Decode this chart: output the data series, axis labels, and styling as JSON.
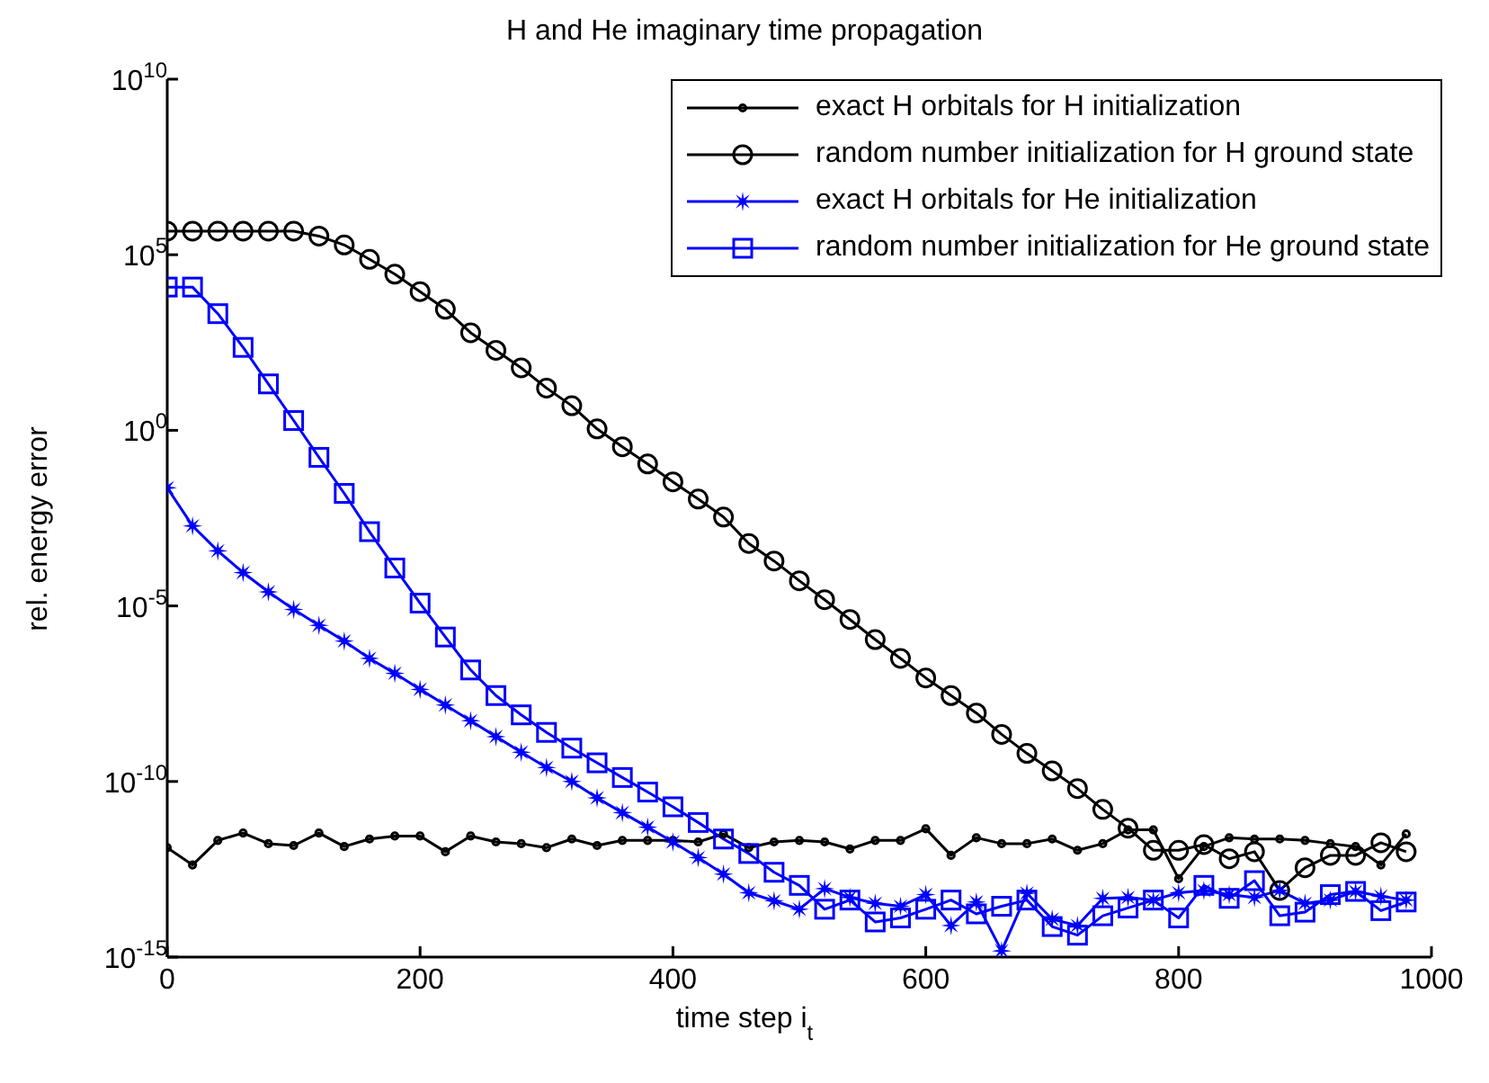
{
  "chart_data": {
    "type": "line",
    "title": "H and He imaginary time propagation",
    "xlabel": "time step i$_{t}$",
    "ylabel": "rel. energy error",
    "log": "y",
    "grid": false,
    "legend": "top right",
    "line_style": "solid",
    "xlim": [
      0,
      1000
    ],
    "xticks": [
      0,
      200,
      400,
      600,
      800,
      1000
    ],
    "ylim": [
      1e-15,
      10000000000.0
    ],
    "yticks": [
      {
        "value": 1e-15,
        "label": "10$^{-15}$"
      },
      {
        "value": 1e-10,
        "label": "10$^{-10}$"
      },
      {
        "value": 1e-05,
        "label": "10$^{-5}$"
      },
      {
        "value": 1,
        "label": "10$^{0}$"
      },
      {
        "value": 100000.0,
        "label": "10$^{5}$"
      },
      {
        "value": 10000000000.0,
        "label": "10$^{10}$"
      }
    ],
    "x": [
      0,
      20,
      40,
      60,
      80,
      100,
      120,
      140,
      160,
      180,
      200,
      220,
      240,
      260,
      280,
      300,
      320,
      340,
      360,
      380,
      400,
      420,
      440,
      460,
      480,
      500,
      520,
      540,
      560,
      580,
      600,
      620,
      640,
      660,
      680,
      700,
      720,
      740,
      760,
      780,
      800,
      820,
      840,
      860,
      880,
      900,
      920,
      940,
      960,
      980
    ],
    "series": [
      {
        "name": "exact H orbitals for H initialization",
        "color": "#000000",
        "marker": "circle",
        "values": [
          1.3e-12,
          4.2e-13,
          2.1e-12,
          3.4e-12,
          1.7e-12,
          1.5e-12,
          3.4e-12,
          1.4e-12,
          2.3e-12,
          2.8e-12,
          2.8e-12,
          1e-12,
          2.8e-12,
          1.9e-12,
          1.7e-12,
          1.3e-12,
          2.3e-12,
          1.5e-12,
          2.1e-12,
          2.1e-12,
          2.1e-12,
          1.9e-12,
          3.2e-12,
          1.3e-12,
          1.9e-12,
          2.1e-12,
          1.9e-12,
          1.2e-12,
          2.1e-12,
          2.1e-12,
          4.5e-12,
          7.9e-13,
          2.5e-12,
          1.7e-12,
          1.7e-12,
          2.3e-12,
          1.1e-12,
          1.7e-12,
          4.2e-12,
          4.2e-12,
          1.7e-13,
          1.4e-12,
          2.5e-12,
          2.3e-12,
          2.3e-12,
          2.1e-12,
          1.7e-12,
          1.4e-12,
          4.2e-13,
          3.2e-12
        ]
      },
      {
        "name": "random number initialization for H ground state",
        "color": "#000000",
        "marker": "circle",
        "values": [
          470000.0,
          470000.0,
          470000.0,
          470000.0,
          470000.0,
          470000.0,
          340000.0,
          190000.0,
          74000.0,
          28000.0,
          8900.0,
          2800.0,
          600,
          190,
          60,
          16,
          5,
          1.1,
          0.34,
          0.11,
          0.034,
          0.011,
          0.0034,
          0.0006,
          0.00019,
          5.2e-05,
          1.5e-05,
          4.1e-06,
          1.1e-06,
          3.2e-07,
          8.9e-08,
          2.8e-08,
          8.9e-09,
          2.2e-09,
          6.3e-10,
          2e-10,
          6.3e-11,
          1.6e-11,
          4.7e-12,
          1.1e-12,
          1.1e-12,
          1.6e-12,
          6.3e-13,
          1e-12,
          7.9e-14,
          3.5e-13,
          7.9e-13,
          7.9e-13,
          1.8e-12,
          1e-12
        ]
      },
      {
        "name": "exact H orbitals for He initialization",
        "color": "#0000ff",
        "marker": "star",
        "values": [
          0.023,
          0.0019,
          0.00037,
          8.9e-05,
          2.5e-05,
          7.9e-06,
          2.8e-06,
          1e-06,
          3.2e-07,
          1.2e-07,
          4.2e-08,
          1.5e-08,
          5.4e-09,
          1.9e-09,
          6.8e-10,
          2.5e-10,
          1e-10,
          3.4e-11,
          1.3e-11,
          5e-12,
          1.9e-12,
          6.8e-13,
          2.3e-13,
          6.8e-14,
          4e-14,
          2.3e-14,
          8.9e-14,
          5e-14,
          3.4e-14,
          2.8e-14,
          6e-14,
          7.9e-15,
          3.7e-14,
          1.5e-15,
          6.6e-14,
          1.2e-14,
          7.9e-15,
          4.7e-14,
          5e-14,
          4.2e-14,
          6.8e-14,
          7.9e-14,
          6e-14,
          5e-14,
          7.9e-14,
          3.4e-14,
          4.2e-14,
          7.4e-14,
          5.4e-14,
          4.2e-14
        ]
      },
      {
        "name": "random number initialization for He ground state",
        "color": "#0000ff",
        "marker": "square",
        "values": [
          12000.0,
          12000.0,
          2100.0,
          230,
          21,
          1.9,
          0.17,
          0.016,
          0.0013,
          0.00012,
          1.2e-05,
          1.3e-06,
          1.5e-07,
          2.8e-08,
          7.9e-09,
          2.5e-09,
          8.9e-10,
          3.4e-10,
          1.3e-10,
          5e-11,
          1.9e-11,
          6.8e-12,
          2.3e-12,
          8.9e-13,
          2.6e-13,
          1.1e-13,
          2.3e-14,
          4.2e-14,
          1e-14,
          1.3e-14,
          2.3e-14,
          4.2e-14,
          1.7e-14,
          2.8e-14,
          4.2e-14,
          7.4e-15,
          4.2e-15,
          1.5e-14,
          2.5e-14,
          4.2e-14,
          1.3e-14,
          1.1e-13,
          4.7e-14,
          1.5e-13,
          1.5e-14,
          1.9e-14,
          6e-14,
          7.4e-14,
          2.1e-14,
          3.7e-14
        ]
      }
    ]
  }
}
